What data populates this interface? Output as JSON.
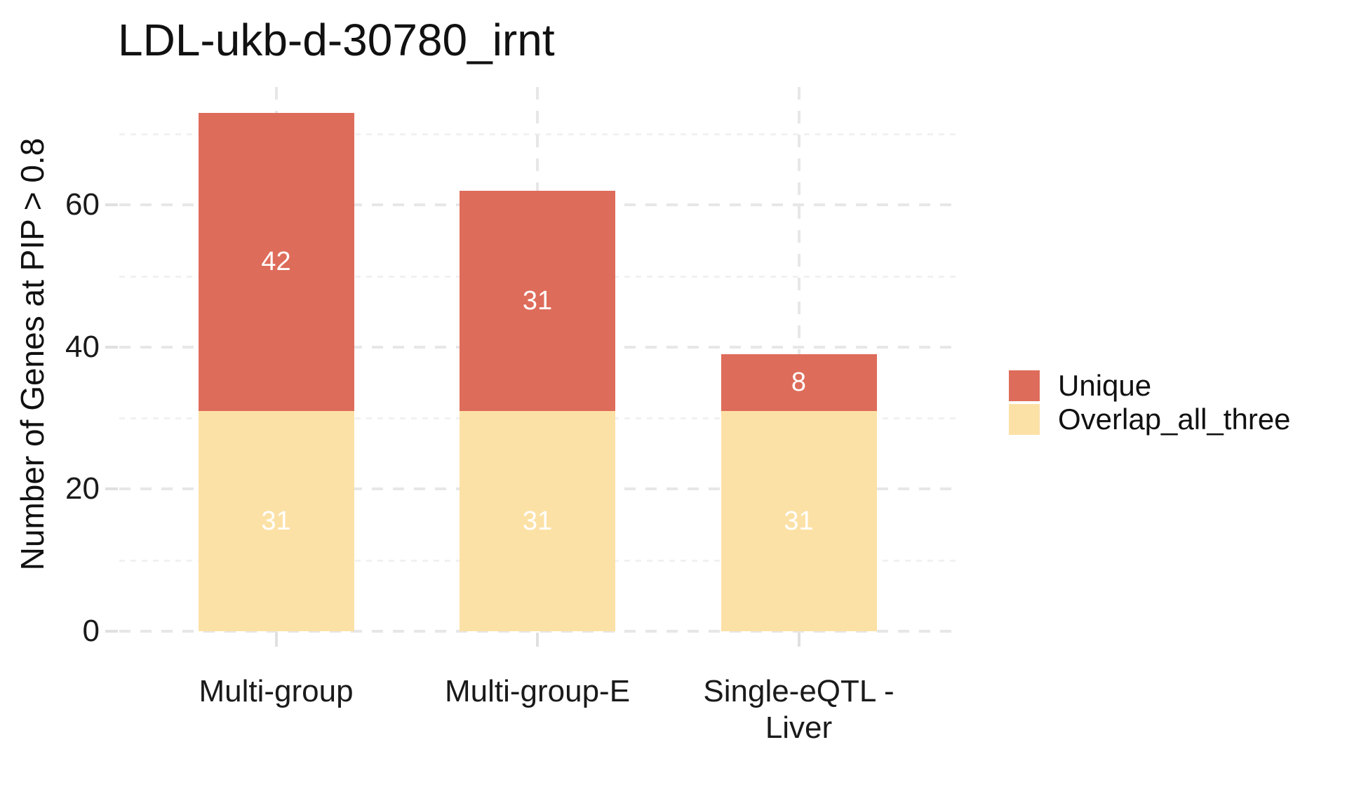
{
  "title": "LDL-ukb-d-30780_irnt",
  "y_axis_title": "Number of Genes at PIP > 0.8",
  "legend": {
    "items": [
      {
        "label": "Unique",
        "color": "#de6c5a"
      },
      {
        "label": "Overlap_all_three",
        "color": "#fce1a6"
      }
    ]
  },
  "colors": {
    "unique": "#de6c5a",
    "overlap_all_three": "#fce1a6",
    "grid_major": "#e7e7e7",
    "grid_minor": "#f1f1f1",
    "axis_tick": "#e0e0e0",
    "bar_label_text": "#ffffff",
    "text": "#1a1a1a"
  },
  "chart_data": {
    "type": "bar",
    "stacked": true,
    "title": "LDL-ukb-d-30780_irnt",
    "xlabel": "",
    "ylabel": "Number of Genes at PIP > 0.8",
    "categories": [
      "Multi-group",
      "Multi-group-E",
      "Single-eQTL -\nLiver"
    ],
    "series": [
      {
        "name": "Overlap_all_three",
        "color": "#fce1a6",
        "values": [
          31,
          31,
          31
        ]
      },
      {
        "name": "Unique",
        "color": "#de6c5a",
        "values": [
          42,
          31,
          8
        ]
      }
    ],
    "bar_value_labels": [
      {
        "category": "Multi-group",
        "Unique": 42,
        "Overlap_all_three": 31
      },
      {
        "category": "Multi-group-E",
        "Unique": 31,
        "Overlap_all_three": 31
      },
      {
        "category": "Single-eQTL - Liver",
        "Unique": 8,
        "Overlap_all_three": 31
      }
    ],
    "ylim": [
      0,
      76.6
    ],
    "yticks": [
      0,
      20,
      40,
      60
    ],
    "yticks_minor": [
      10,
      30,
      50,
      70
    ],
    "grid": "dashed",
    "legend_position": "right",
    "legend_order": [
      "Unique",
      "Overlap_all_three"
    ]
  }
}
